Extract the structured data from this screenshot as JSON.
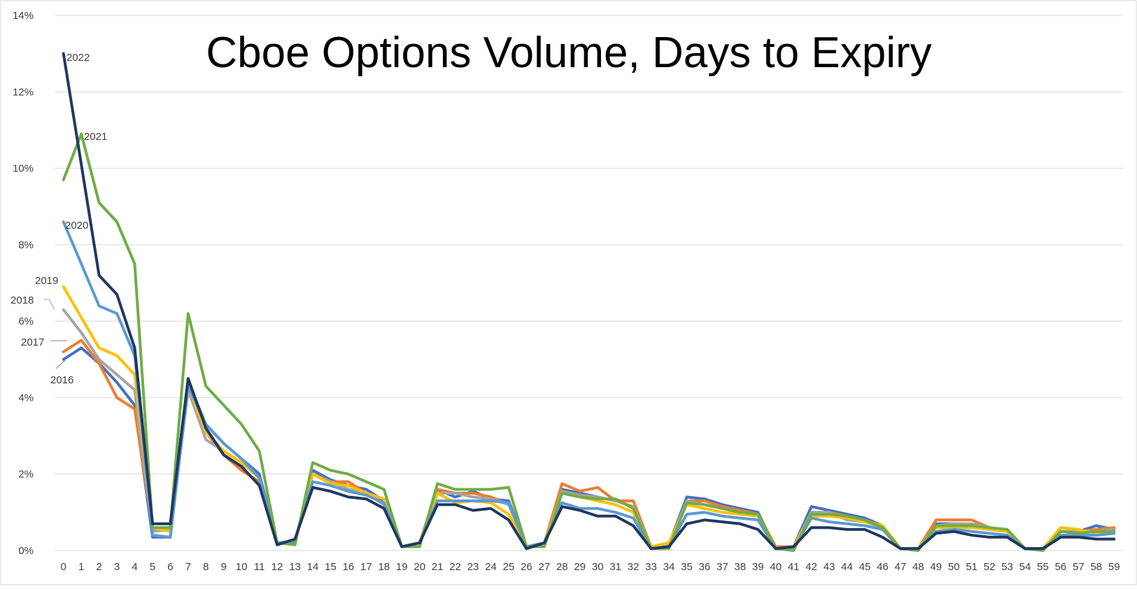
{
  "chart_data": {
    "type": "line",
    "title": "Cboe Options Volume, Days to Expiry",
    "xlabel": "",
    "ylabel": "",
    "x": [
      0,
      1,
      2,
      3,
      4,
      5,
      6,
      7,
      8,
      9,
      10,
      11,
      12,
      13,
      14,
      15,
      16,
      17,
      18,
      19,
      20,
      21,
      22,
      23,
      24,
      25,
      26,
      27,
      28,
      29,
      30,
      31,
      32,
      33,
      34,
      35,
      36,
      37,
      38,
      39,
      40,
      41,
      42,
      43,
      44,
      45,
      46,
      47,
      48,
      49,
      50,
      51,
      52,
      53,
      54,
      55,
      56,
      57,
      58,
      59
    ],
    "ylim": [
      0,
      14
    ],
    "yticks": [
      "0%",
      "2%",
      "4%",
      "6%",
      "8%",
      "10%",
      "12%",
      "14%"
    ],
    "grid": true,
    "legend": "none (inline labels at left)",
    "series": [
      {
        "name": "2016",
        "color": "#4472C4",
        "values": [
          5.0,
          5.3,
          4.9,
          4.4,
          3.8,
          0.35,
          0.35,
          4.4,
          3.3,
          2.8,
          2.4,
          2.0,
          0.2,
          0.2,
          2.1,
          1.85,
          1.7,
          1.6,
          1.3,
          0.1,
          0.2,
          1.6,
          1.4,
          1.55,
          1.35,
          1.3,
          0.1,
          0.2,
          1.6,
          1.5,
          1.4,
          1.3,
          1.15,
          0.1,
          0.15,
          1.4,
          1.35,
          1.2,
          1.1,
          1.0,
          0.05,
          0.1,
          1.15,
          1.05,
          0.95,
          0.85,
          0.65,
          0.05,
          0.05,
          0.7,
          0.7,
          0.65,
          0.55,
          0.5,
          0.05,
          0.05,
          0.5,
          0.5,
          0.65,
          0.55
        ]
      },
      {
        "name": "2017",
        "color": "#ED7D31",
        "values": [
          5.2,
          5.5,
          4.9,
          4.0,
          3.7,
          0.55,
          0.55,
          4.2,
          3.1,
          2.5,
          2.1,
          1.8,
          0.2,
          0.25,
          2.0,
          1.8,
          1.8,
          1.5,
          1.2,
          0.1,
          0.2,
          1.6,
          1.5,
          1.5,
          1.4,
          1.2,
          0.1,
          0.2,
          1.75,
          1.55,
          1.65,
          1.3,
          1.3,
          0.1,
          0.15,
          1.3,
          1.3,
          1.15,
          1.05,
          0.95,
          0.1,
          0.1,
          1.0,
          1.0,
          0.9,
          0.8,
          0.65,
          0.05,
          0.05,
          0.8,
          0.8,
          0.8,
          0.6,
          0.5,
          0.05,
          0.05,
          0.5,
          0.5,
          0.55,
          0.6
        ]
      },
      {
        "name": "2018",
        "color": "#A5A5A5",
        "values": [
          6.3,
          5.7,
          5.0,
          4.6,
          4.2,
          0.5,
          0.55,
          4.2,
          2.9,
          2.6,
          2.3,
          1.9,
          0.2,
          0.25,
          2.0,
          1.8,
          1.6,
          1.5,
          1.2,
          0.1,
          0.2,
          1.5,
          1.5,
          1.4,
          1.35,
          1.2,
          0.1,
          0.2,
          1.55,
          1.45,
          1.4,
          1.3,
          1.15,
          0.1,
          0.15,
          1.3,
          1.2,
          1.1,
          1.0,
          0.9,
          0.05,
          0.1,
          1.0,
          1.0,
          0.8,
          0.75,
          0.6,
          0.05,
          0.05,
          0.65,
          0.7,
          0.7,
          0.6,
          0.5,
          0.05,
          0.05,
          0.5,
          0.5,
          0.5,
          0.55
        ]
      },
      {
        "name": "2019",
        "color": "#FFC000",
        "values": [
          6.9,
          6.1,
          5.3,
          5.1,
          4.6,
          0.6,
          0.5,
          4.3,
          3.1,
          2.6,
          2.3,
          1.9,
          0.2,
          0.25,
          2.0,
          1.75,
          1.7,
          1.5,
          1.35,
          0.1,
          0.2,
          1.5,
          1.25,
          1.3,
          1.25,
          0.95,
          0.1,
          0.2,
          1.5,
          1.4,
          1.3,
          1.2,
          1.0,
          0.1,
          0.2,
          1.2,
          1.1,
          1.0,
          0.95,
          0.9,
          0.05,
          0.1,
          0.9,
          0.9,
          0.85,
          0.75,
          0.65,
          0.05,
          0.05,
          0.6,
          0.6,
          0.6,
          0.55,
          0.5,
          0.05,
          0.05,
          0.6,
          0.55,
          0.45,
          0.45
        ]
      },
      {
        "name": "2020",
        "color": "#5B9BD5",
        "values": [
          8.6,
          7.5,
          6.4,
          6.2,
          5.1,
          0.4,
          0.35,
          4.3,
          3.3,
          2.8,
          2.4,
          1.9,
          0.2,
          0.25,
          1.8,
          1.7,
          1.55,
          1.45,
          1.25,
          0.1,
          0.2,
          1.3,
          1.3,
          1.3,
          1.3,
          1.25,
          0.1,
          0.2,
          1.25,
          1.1,
          1.1,
          1.0,
          0.85,
          0.05,
          0.1,
          0.95,
          1.0,
          0.9,
          0.85,
          0.8,
          0.05,
          0.05,
          0.85,
          0.75,
          0.7,
          0.65,
          0.55,
          0.05,
          0.05,
          0.5,
          0.55,
          0.5,
          0.45,
          0.4,
          0.05,
          0.05,
          0.4,
          0.4,
          0.4,
          0.45
        ]
      },
      {
        "name": "2021",
        "color": "#70AD47",
        "values": [
          9.7,
          10.9,
          9.1,
          8.6,
          7.5,
          0.6,
          0.6,
          6.2,
          4.3,
          3.8,
          3.3,
          2.6,
          0.2,
          0.15,
          2.3,
          2.1,
          2.0,
          1.8,
          1.6,
          0.1,
          0.1,
          1.75,
          1.6,
          1.6,
          1.6,
          1.65,
          0.1,
          0.1,
          1.5,
          1.4,
          1.35,
          1.35,
          1.1,
          0.05,
          0.05,
          1.25,
          1.2,
          1.1,
          1.0,
          0.95,
          0.05,
          0.0,
          0.95,
          0.95,
          0.9,
          0.8,
          0.6,
          0.05,
          0.0,
          0.65,
          0.65,
          0.65,
          0.6,
          0.55,
          0.05,
          0.0,
          0.5,
          0.45,
          0.5,
          0.5
        ]
      },
      {
        "name": "2022",
        "color": "#203864",
        "values": [
          13.0,
          10.1,
          7.2,
          6.7,
          5.3,
          0.7,
          0.7,
          4.5,
          3.2,
          2.5,
          2.2,
          1.7,
          0.15,
          0.3,
          1.65,
          1.55,
          1.4,
          1.35,
          1.1,
          0.1,
          0.2,
          1.2,
          1.2,
          1.05,
          1.1,
          0.8,
          0.05,
          0.2,
          1.15,
          1.05,
          0.9,
          0.9,
          0.65,
          0.05,
          0.1,
          0.7,
          0.8,
          0.75,
          0.7,
          0.55,
          0.05,
          0.1,
          0.6,
          0.6,
          0.55,
          0.55,
          0.35,
          0.05,
          0.05,
          0.45,
          0.5,
          0.4,
          0.35,
          0.35,
          0.05,
          0.05,
          0.35,
          0.35,
          0.3,
          0.3
        ]
      }
    ]
  }
}
